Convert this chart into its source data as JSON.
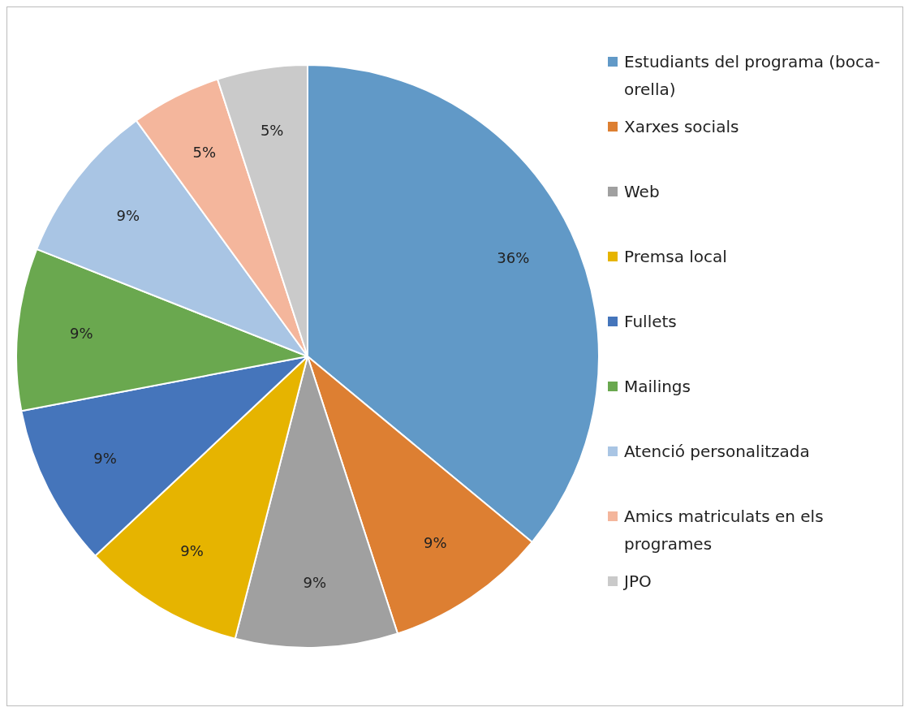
{
  "chart_data": {
    "type": "pie",
    "categories": [
      "Estudiants del programa (boca-orella)",
      "Xarxes socials",
      "Web",
      "Premsa local",
      "Fullets",
      "Mailings",
      "Atenció personalitzada",
      "Amics matriculats en els programes",
      "JPO"
    ],
    "values": [
      36,
      9,
      9,
      9,
      9,
      9,
      9,
      5,
      5
    ],
    "value_labels": [
      "36%",
      "9%",
      "9%",
      "9%",
      "9%",
      "9%",
      "9%",
      "5%",
      "5%"
    ],
    "colors": [
      "#6199c7",
      "#dd7f32",
      "#a0a0a0",
      "#e6b400",
      "#4575bb",
      "#6aa84f",
      "#a9c5e4",
      "#f4b69c",
      "#cacaca"
    ],
    "legend": "right"
  }
}
